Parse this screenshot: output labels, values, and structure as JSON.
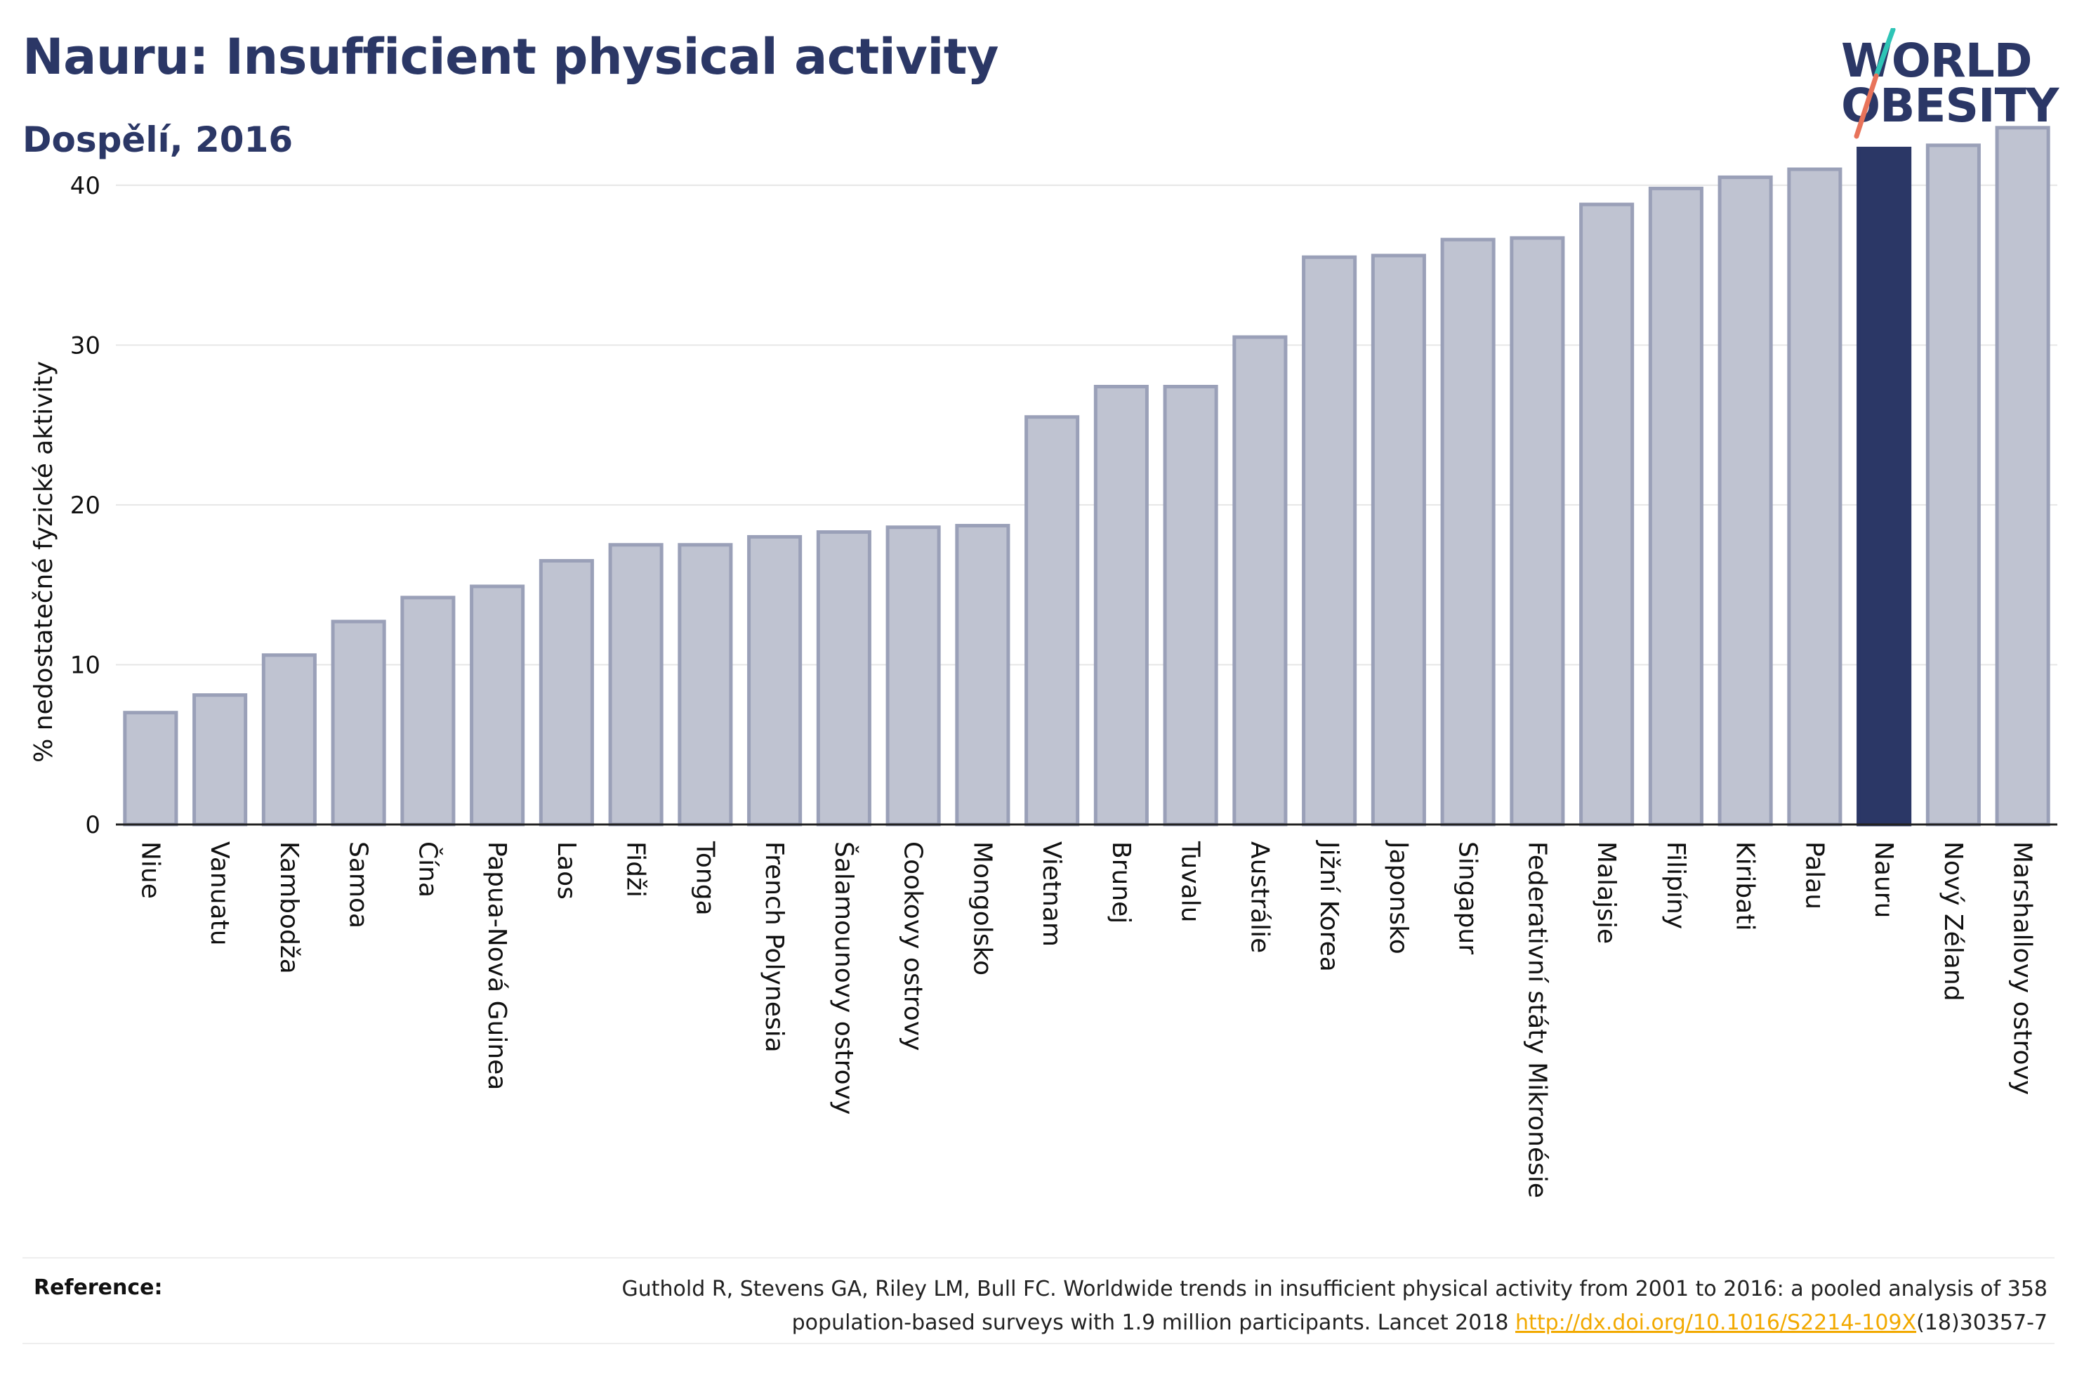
{
  "header": {
    "title": "Nauru: Insufficient physical activity",
    "subtitle": "Dospělí, 2016"
  },
  "logo": {
    "line1": "WORLD",
    "line2": "OBESITY",
    "slash_colors": [
      "#2ec4b6",
      "#e8735a"
    ]
  },
  "colors": {
    "bar": "#bfc3d1",
    "bar_border": "#9aa0b8",
    "highlight": "#2b3766",
    "grid": "#e6e6e6",
    "axis": "#222222",
    "link": "#f2a900"
  },
  "chart_data": {
    "type": "bar",
    "ylabel": "% nedostatečné fyzické aktivity",
    "ylim": [
      0,
      45
    ],
    "yticks": [
      0,
      10,
      20,
      30,
      40
    ],
    "grid": true,
    "highlight_category": "Nauru",
    "categories": [
      "Niue",
      "Vanuatu",
      "Kambodža",
      "Samoa",
      "Čína",
      "Papua-Nová Guinea",
      "Laos",
      "Fidži",
      "Tonga",
      "French Polynesia",
      "Šalamounovy ostrovy",
      "Cookovy ostrovy",
      "Mongolsko",
      "Vietnam",
      "Brunej",
      "Tuvalu",
      "Austrálie",
      "Jižní Korea",
      "Japonsko",
      "Singapur",
      "Federativní státy Mikronésie",
      "Malajsie",
      "Filipíny",
      "Kiribati",
      "Palau",
      "Nauru",
      "Nový Zéland",
      "Marshallovy ostrovy"
    ],
    "values": [
      7.0,
      8.1,
      10.6,
      12.7,
      14.2,
      14.9,
      16.5,
      17.5,
      17.5,
      18.0,
      18.3,
      18.6,
      18.7,
      25.5,
      27.4,
      27.4,
      30.5,
      35.5,
      35.6,
      36.6,
      36.7,
      38.8,
      39.8,
      40.5,
      41.0,
      42.3,
      42.5,
      43.6
    ]
  },
  "reference": {
    "label": "Reference:",
    "line1": "Guthold R, Stevens GA, Riley LM, Bull FC. Worldwide trends in insufficient physical activity from 2001 to 2016: a pooled analysis of 358",
    "line2_prefix": "population-based surveys with 1.9 million participants. Lancet 2018 ",
    "link": "http://dx.doi.org/10.1016/S2214-109X",
    "line2_suffix": "(18)30357-7"
  }
}
